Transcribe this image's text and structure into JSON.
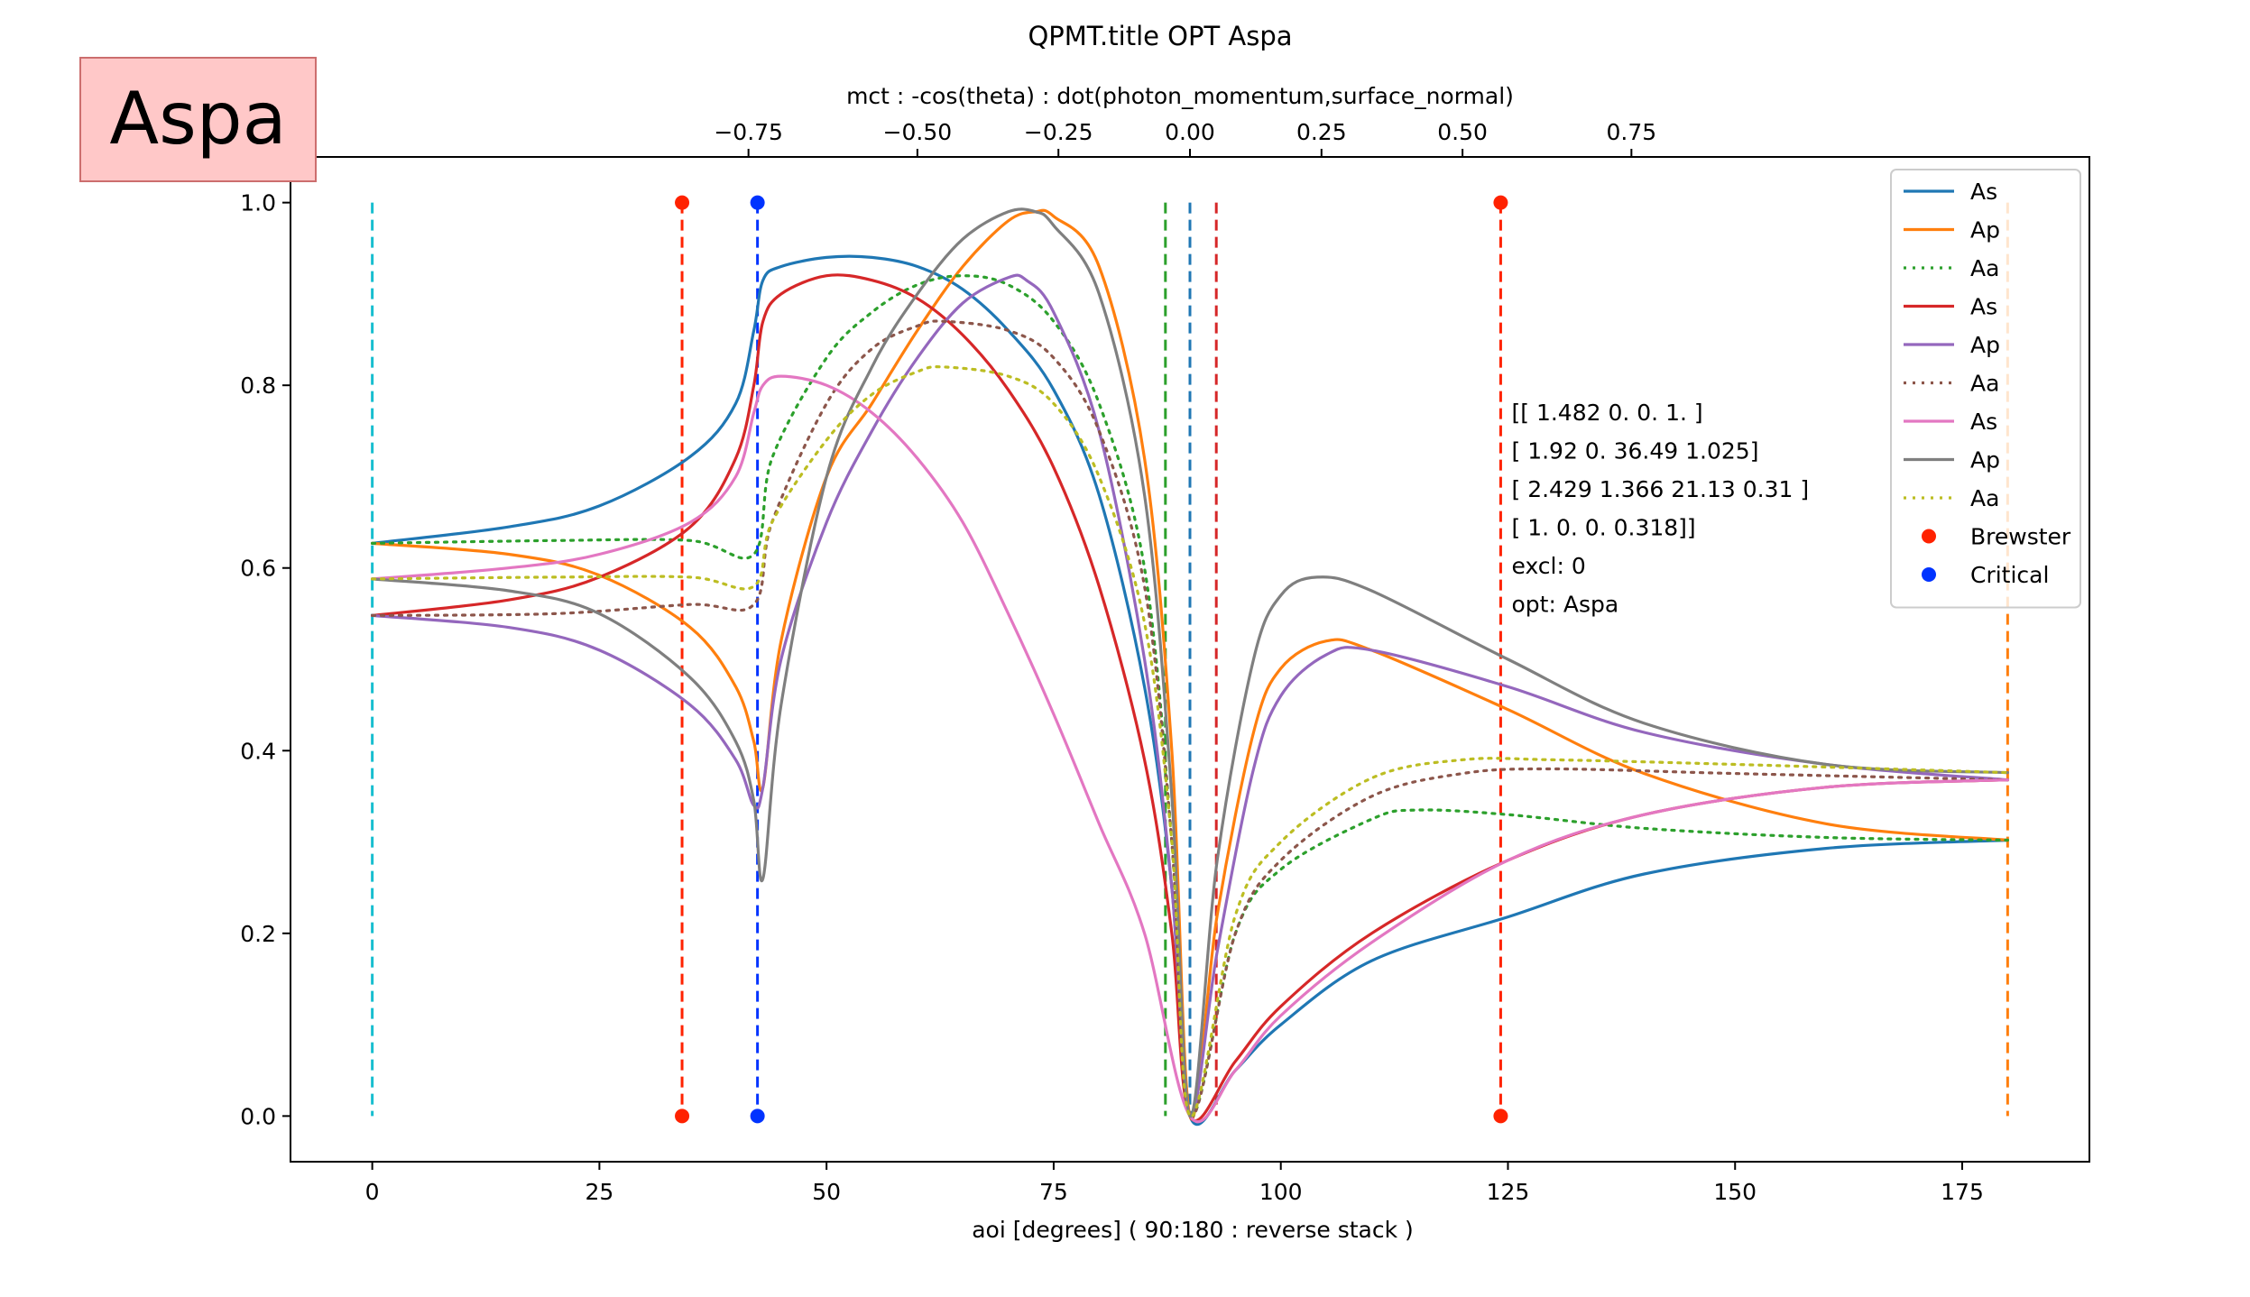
{
  "badge": {
    "text": "Aspa",
    "fill": "#ffc8c8",
    "border": "#cc6e6e"
  },
  "chart_data": {
    "type": "line",
    "title": "QPMT.title OPT Aspa",
    "xlabel": "aoi [degrees] ( 90:180 : reverse stack )",
    "top_xlabel": "mct : -cos(theta) : dot(photon_momentum,surface_normal)",
    "ylabel": "",
    "xlim": [
      -9,
      189
    ],
    "ylim": [
      -0.05,
      1.05
    ],
    "grid": false,
    "legend_position": "top-right",
    "x_ticks": [
      0,
      25,
      50,
      75,
      100,
      125,
      150,
      175
    ],
    "x_tick_labels": [
      "0",
      "25",
      "50",
      "75",
      "100",
      "125",
      "150",
      "175"
    ],
    "y_ticks": [
      0.0,
      0.2,
      0.4,
      0.6,
      0.8,
      1.0
    ],
    "y_tick_labels": [
      "0.0",
      "0.2",
      "0.4",
      "0.6",
      "0.8",
      "1.0"
    ],
    "top_ticks": [
      -0.75,
      -0.5,
      -0.25,
      0.0,
      0.25,
      0.5,
      0.75
    ],
    "top_tick_labels": [
      "−0.75",
      "−0.50",
      "−0.25",
      "0.00",
      "0.25",
      "0.50",
      "0.75"
    ],
    "series": [
      {
        "name": "As",
        "color": "#1f77b4",
        "dash": "solid",
        "points": [
          [
            0,
            0.627
          ],
          [
            15,
            0.645
          ],
          [
            25,
            0.668
          ],
          [
            35,
            0.722
          ],
          [
            40,
            0.78
          ],
          [
            42,
            0.86
          ],
          [
            43,
            0.915
          ],
          [
            45,
            0.93
          ],
          [
            50,
            0.94
          ],
          [
            55,
            0.94
          ],
          [
            60,
            0.93
          ],
          [
            65,
            0.905
          ],
          [
            70,
            0.86
          ],
          [
            75,
            0.795
          ],
          [
            80,
            0.68
          ],
          [
            85,
            0.47
          ],
          [
            88,
            0.25
          ],
          [
            90,
            0.0
          ],
          [
            95,
            0.05
          ],
          [
            100,
            0.1
          ],
          [
            110,
            0.17
          ],
          [
            125,
            0.218
          ],
          [
            140,
            0.265
          ],
          [
            160,
            0.293
          ],
          [
            180,
            0.302
          ]
        ]
      },
      {
        "name": "Ap",
        "color": "#ff7f0e",
        "dash": "solid",
        "points": [
          [
            0,
            0.627
          ],
          [
            15,
            0.615
          ],
          [
            25,
            0.592
          ],
          [
            35,
            0.535
          ],
          [
            40,
            0.47
          ],
          [
            42,
            0.41
          ],
          [
            43,
            0.36
          ],
          [
            45,
            0.52
          ],
          [
            50,
            0.7
          ],
          [
            55,
            0.78
          ],
          [
            60,
            0.86
          ],
          [
            65,
            0.93
          ],
          [
            70,
            0.98
          ],
          [
            73,
            0.99
          ],
          [
            75,
            0.985
          ],
          [
            80,
            0.93
          ],
          [
            85,
            0.72
          ],
          [
            88,
            0.4
          ],
          [
            90,
            0.0
          ],
          [
            93,
            0.22
          ],
          [
            97,
            0.42
          ],
          [
            100,
            0.49
          ],
          [
            105,
            0.52
          ],
          [
            110,
            0.51
          ],
          [
            125,
            0.445
          ],
          [
            140,
            0.375
          ],
          [
            160,
            0.32
          ],
          [
            180,
            0.302
          ]
        ]
      },
      {
        "name": "Aa",
        "color": "#2ca02c",
        "dash": "dotted",
        "points": [
          [
            0,
            0.627
          ],
          [
            20,
            0.63
          ],
          [
            35,
            0.63
          ],
          [
            42,
            0.615
          ],
          [
            44,
            0.72
          ],
          [
            50,
            0.83
          ],
          [
            55,
            0.88
          ],
          [
            60,
            0.91
          ],
          [
            65,
            0.92
          ],
          [
            70,
            0.91
          ],
          [
            75,
            0.87
          ],
          [
            80,
            0.78
          ],
          [
            85,
            0.6
          ],
          [
            88,
            0.3
          ],
          [
            90,
            0.0
          ],
          [
            95,
            0.2
          ],
          [
            100,
            0.27
          ],
          [
            110,
            0.325
          ],
          [
            115,
            0.335
          ],
          [
            125,
            0.33
          ],
          [
            140,
            0.315
          ],
          [
            160,
            0.305
          ],
          [
            180,
            0.302
          ]
        ]
      },
      {
        "name": "As",
        "color": "#d62728",
        "dash": "solid",
        "points": [
          [
            0,
            0.548
          ],
          [
            15,
            0.565
          ],
          [
            25,
            0.59
          ],
          [
            35,
            0.645
          ],
          [
            40,
            0.72
          ],
          [
            42,
            0.8
          ],
          [
            43,
            0.87
          ],
          [
            45,
            0.9
          ],
          [
            50,
            0.92
          ],
          [
            55,
            0.915
          ],
          [
            60,
            0.895
          ],
          [
            65,
            0.855
          ],
          [
            70,
            0.795
          ],
          [
            75,
            0.71
          ],
          [
            80,
            0.58
          ],
          [
            85,
            0.39
          ],
          [
            88,
            0.2
          ],
          [
            90,
            0.0
          ],
          [
            95,
            0.06
          ],
          [
            100,
            0.12
          ],
          [
            110,
            0.2
          ],
          [
            125,
            0.28
          ],
          [
            140,
            0.33
          ],
          [
            160,
            0.36
          ],
          [
            180,
            0.368
          ]
        ]
      },
      {
        "name": "Ap",
        "color": "#9467bd",
        "dash": "solid",
        "points": [
          [
            0,
            0.548
          ],
          [
            15,
            0.535
          ],
          [
            25,
            0.51
          ],
          [
            35,
            0.45
          ],
          [
            40,
            0.39
          ],
          [
            42,
            0.34
          ],
          [
            43,
            0.36
          ],
          [
            45,
            0.5
          ],
          [
            50,
            0.65
          ],
          [
            55,
            0.75
          ],
          [
            60,
            0.83
          ],
          [
            65,
            0.89
          ],
          [
            70,
            0.918
          ],
          [
            72,
            0.915
          ],
          [
            75,
            0.88
          ],
          [
            80,
            0.75
          ],
          [
            85,
            0.5
          ],
          [
            88,
            0.25
          ],
          [
            90,
            0.0
          ],
          [
            93,
            0.18
          ],
          [
            97,
            0.38
          ],
          [
            100,
            0.46
          ],
          [
            105,
            0.505
          ],
          [
            110,
            0.51
          ],
          [
            125,
            0.47
          ],
          [
            140,
            0.42
          ],
          [
            160,
            0.385
          ],
          [
            180,
            0.368
          ]
        ]
      },
      {
        "name": "Aa",
        "color": "#8c564b",
        "dash": "dotted",
        "points": [
          [
            0,
            0.548
          ],
          [
            20,
            0.55
          ],
          [
            35,
            0.56
          ],
          [
            42,
            0.56
          ],
          [
            44,
            0.65
          ],
          [
            50,
            0.78
          ],
          [
            55,
            0.84
          ],
          [
            60,
            0.865
          ],
          [
            63,
            0.87
          ],
          [
            70,
            0.86
          ],
          [
            75,
            0.83
          ],
          [
            80,
            0.75
          ],
          [
            85,
            0.58
          ],
          [
            88,
            0.3
          ],
          [
            90,
            0.0
          ],
          [
            95,
            0.2
          ],
          [
            100,
            0.28
          ],
          [
            110,
            0.35
          ],
          [
            120,
            0.375
          ],
          [
            130,
            0.38
          ],
          [
            150,
            0.375
          ],
          [
            180,
            0.368
          ]
        ]
      },
      {
        "name": "As",
        "color": "#e377c2",
        "dash": "solid",
        "points": [
          [
            0,
            0.588
          ],
          [
            15,
            0.6
          ],
          [
            25,
            0.615
          ],
          [
            35,
            0.65
          ],
          [
            40,
            0.7
          ],
          [
            42,
            0.77
          ],
          [
            43,
            0.8
          ],
          [
            45,
            0.81
          ],
          [
            50,
            0.8
          ],
          [
            55,
            0.77
          ],
          [
            60,
            0.72
          ],
          [
            65,
            0.65
          ],
          [
            70,
            0.55
          ],
          [
            75,
            0.44
          ],
          [
            80,
            0.32
          ],
          [
            85,
            0.2
          ],
          [
            90,
            0.0
          ],
          [
            95,
            0.05
          ],
          [
            100,
            0.11
          ],
          [
            110,
            0.19
          ],
          [
            125,
            0.28
          ],
          [
            140,
            0.33
          ],
          [
            160,
            0.36
          ],
          [
            180,
            0.368
          ]
        ]
      },
      {
        "name": "Ap",
        "color": "#7f7f7f",
        "dash": "solid",
        "points": [
          [
            0,
            0.588
          ],
          [
            15,
            0.575
          ],
          [
            25,
            0.55
          ],
          [
            35,
            0.48
          ],
          [
            40,
            0.41
          ],
          [
            42,
            0.345
          ],
          [
            43,
            0.26
          ],
          [
            45,
            0.45
          ],
          [
            50,
            0.7
          ],
          [
            55,
            0.82
          ],
          [
            60,
            0.9
          ],
          [
            65,
            0.96
          ],
          [
            70,
            0.99
          ],
          [
            73,
            0.99
          ],
          [
            75,
            0.975
          ],
          [
            80,
            0.9
          ],
          [
            85,
            0.68
          ],
          [
            88,
            0.35
          ],
          [
            90,
            0.0
          ],
          [
            93,
            0.28
          ],
          [
            97,
            0.5
          ],
          [
            100,
            0.57
          ],
          [
            104,
            0.59
          ],
          [
            110,
            0.575
          ],
          [
            125,
            0.5
          ],
          [
            140,
            0.43
          ],
          [
            160,
            0.385
          ],
          [
            180,
            0.376
          ]
        ]
      },
      {
        "name": "Aa",
        "color": "#bcbd22",
        "dash": "dotted",
        "points": [
          [
            0,
            0.588
          ],
          [
            20,
            0.59
          ],
          [
            35,
            0.59
          ],
          [
            42,
            0.58
          ],
          [
            44,
            0.65
          ],
          [
            50,
            0.74
          ],
          [
            55,
            0.79
          ],
          [
            60,
            0.815
          ],
          [
            63,
            0.82
          ],
          [
            70,
            0.81
          ],
          [
            75,
            0.78
          ],
          [
            80,
            0.7
          ],
          [
            85,
            0.54
          ],
          [
            88,
            0.3
          ],
          [
            90,
            0.0
          ],
          [
            95,
            0.22
          ],
          [
            100,
            0.3
          ],
          [
            110,
            0.37
          ],
          [
            120,
            0.39
          ],
          [
            130,
            0.39
          ],
          [
            150,
            0.385
          ],
          [
            180,
            0.376
          ]
        ]
      }
    ],
    "scatter_series": [
      {
        "name": "Brewster",
        "color": "#ff2200",
        "points": [
          [
            34.1,
            0.0
          ],
          [
            34.1,
            1.0
          ],
          [
            124.2,
            0.0
          ],
          [
            124.2,
            1.0
          ]
        ]
      },
      {
        "name": "Critical",
        "color": "#0033ff",
        "points": [
          [
            42.4,
            0.0
          ],
          [
            42.4,
            1.0
          ]
        ]
      }
    ],
    "vertical_lines": [
      {
        "x": 0,
        "color": "#17becf"
      },
      {
        "x": 34.1,
        "color": "#ff2200"
      },
      {
        "x": 42.4,
        "color": "#0033ff"
      },
      {
        "x": 87.3,
        "color": "#2ca02c"
      },
      {
        "x": 90.0,
        "color": "#1f77b4"
      },
      {
        "x": 92.9,
        "color": "#d62728"
      },
      {
        "x": 124.2,
        "color": "#ff2200"
      },
      {
        "x": 180,
        "color": "#ff7f0e"
      }
    ],
    "annotation_lines": [
      "[[ 1.482  0.     0.     1.   ]",
      " [ 1.92   0.    36.49   1.025]",
      " [ 2.429  1.366 21.13   0.31 ]",
      " [ 1.     0.     0.     0.318]]",
      "excl: 0",
      "opt: Aspa"
    ]
  }
}
